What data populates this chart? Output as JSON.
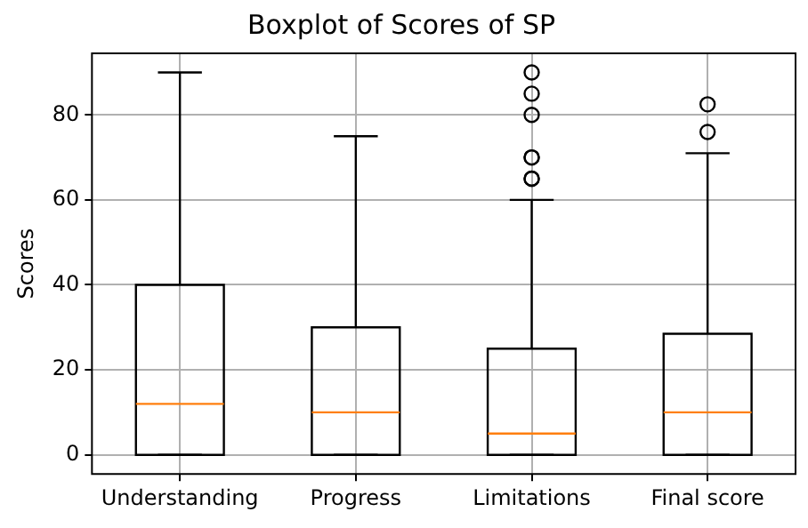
{
  "chart_data": {
    "type": "box",
    "title": "Boxplot of Scores of SP",
    "ylabel": "Scores",
    "categories": [
      "Understanding",
      "Progress",
      "Limitations",
      "Final score"
    ],
    "boxes": [
      {
        "low": 0,
        "q1": 0,
        "median": 12,
        "q3": 40,
        "high": 90
      },
      {
        "low": 0,
        "q1": 0,
        "median": 10,
        "q3": 30,
        "high": 75
      },
      {
        "low": 0,
        "q1": 0,
        "median": 5,
        "q3": 25,
        "high": 60,
        "outliers": [
          65,
          65,
          70,
          70,
          80,
          85,
          90
        ]
      },
      {
        "low": 0,
        "q1": 0,
        "median": 10,
        "q3": 28.5,
        "high": 71,
        "outliers": [
          76,
          82.5
        ]
      }
    ],
    "color": "#000000",
    "ylim": [
      -4.5,
      94.5
    ],
    "yticks": [
      0,
      20,
      40,
      60,
      80
    ],
    "grid": true
  }
}
